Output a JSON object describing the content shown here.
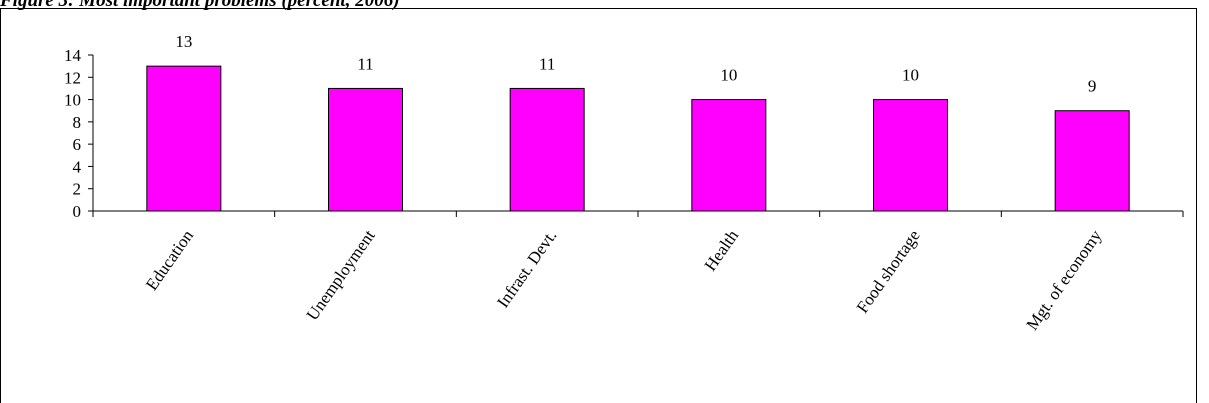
{
  "figure": {
    "caption": "Figure 3: Most important problems (percent, 2006)"
  },
  "colors": {
    "bar_fill": "#ff00ff",
    "bar_stroke": "#000000",
    "axis": "#000000"
  },
  "chart_data": {
    "type": "bar",
    "categories": [
      "Education",
      "Unemployment",
      "Infrast. Devt.",
      "Health",
      "Food shortage",
      "Mgt. of economy"
    ],
    "values": [
      13,
      11,
      11,
      10,
      10,
      9
    ],
    "data_labels": [
      "13",
      "11",
      "11",
      "10",
      "10",
      "9"
    ],
    "yticks": [
      "0",
      "2",
      "4",
      "6",
      "8",
      "10",
      "12",
      "14"
    ],
    "ylim": [
      0,
      14
    ],
    "xlabel": "",
    "ylabel": "",
    "legend": "none",
    "grid": false
  }
}
